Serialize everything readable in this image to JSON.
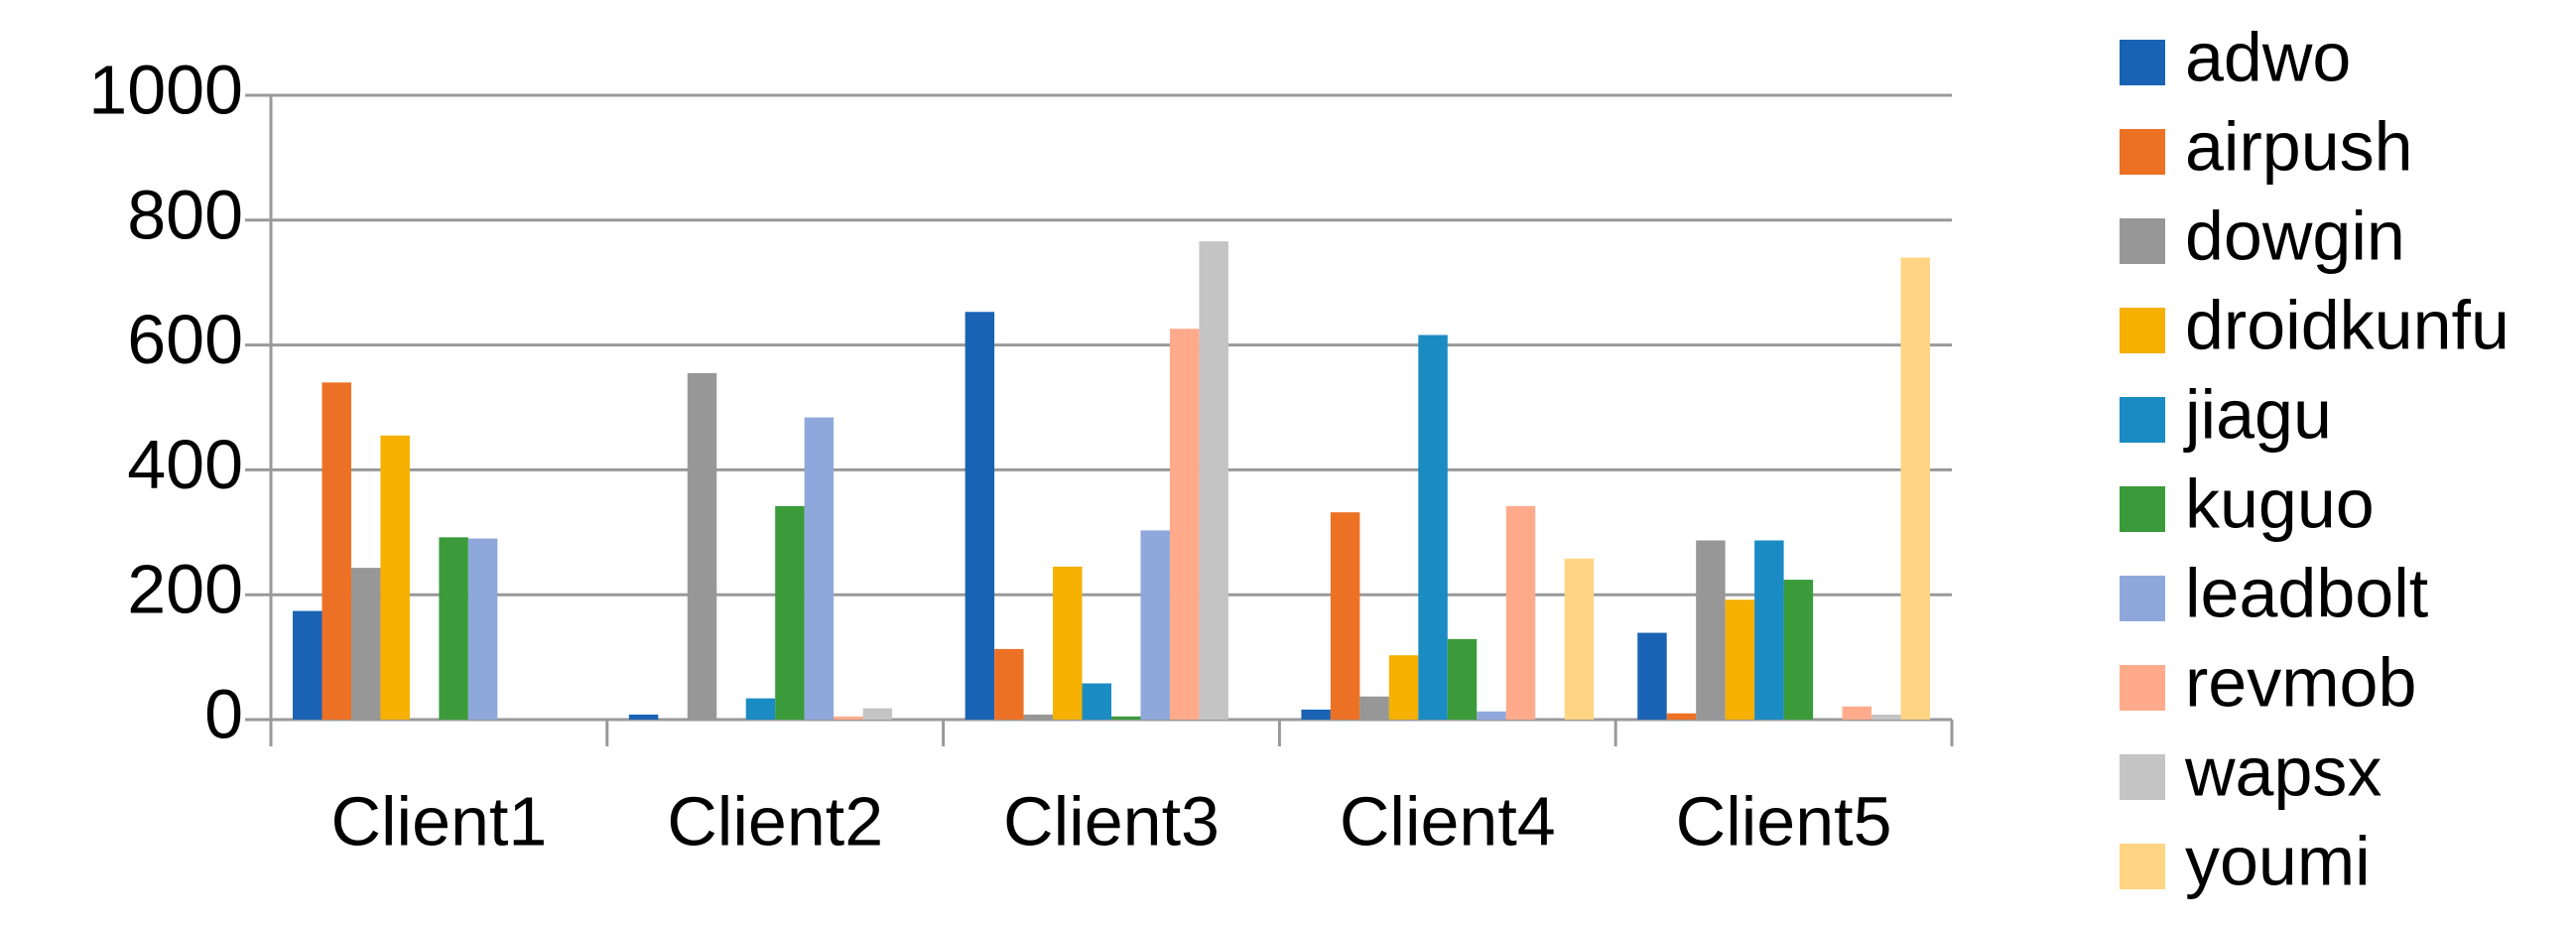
{
  "chart_data": {
    "type": "bar",
    "categories": [
      "Client1",
      "Client2",
      "Client3",
      "Client4",
      "Client5"
    ],
    "series": [
      {
        "name": "adwo",
        "color": "#1a63b4",
        "values": [
          174,
          8,
          653,
          16,
          139
        ]
      },
      {
        "name": "airpush",
        "color": "#ed7125",
        "values": [
          540,
          0,
          113,
          332,
          10
        ]
      },
      {
        "name": "dowgin",
        "color": "#979797",
        "values": [
          243,
          555,
          8,
          37,
          287
        ]
      },
      {
        "name": "droidkunfu",
        "color": "#f5b000",
        "values": [
          455,
          0,
          245,
          103,
          192
        ]
      },
      {
        "name": "jiagu",
        "color": "#1b8bc4",
        "values": [
          0,
          34,
          58,
          616,
          287
        ]
      },
      {
        "name": "kuguo",
        "color": "#3b9b3b",
        "values": [
          292,
          342,
          5,
          129,
          224
        ]
      },
      {
        "name": "leadbolt",
        "color": "#8fa8db",
        "values": [
          290,
          484,
          303,
          13,
          0
        ]
      },
      {
        "name": "revmob",
        "color": "#ffab8b",
        "values": [
          0,
          5,
          626,
          342,
          21
        ]
      },
      {
        "name": "wapsx",
        "color": "#c4c4c4",
        "values": [
          0,
          18,
          766,
          0,
          8
        ]
      },
      {
        "name": "youmi",
        "color": "#ffd483",
        "values": [
          0,
          0,
          0,
          258,
          740
        ]
      }
    ],
    "ylim": [
      0,
      1000
    ],
    "yticks": [
      0,
      200,
      400,
      600,
      800,
      1000
    ],
    "grid": true,
    "legend": "right"
  }
}
